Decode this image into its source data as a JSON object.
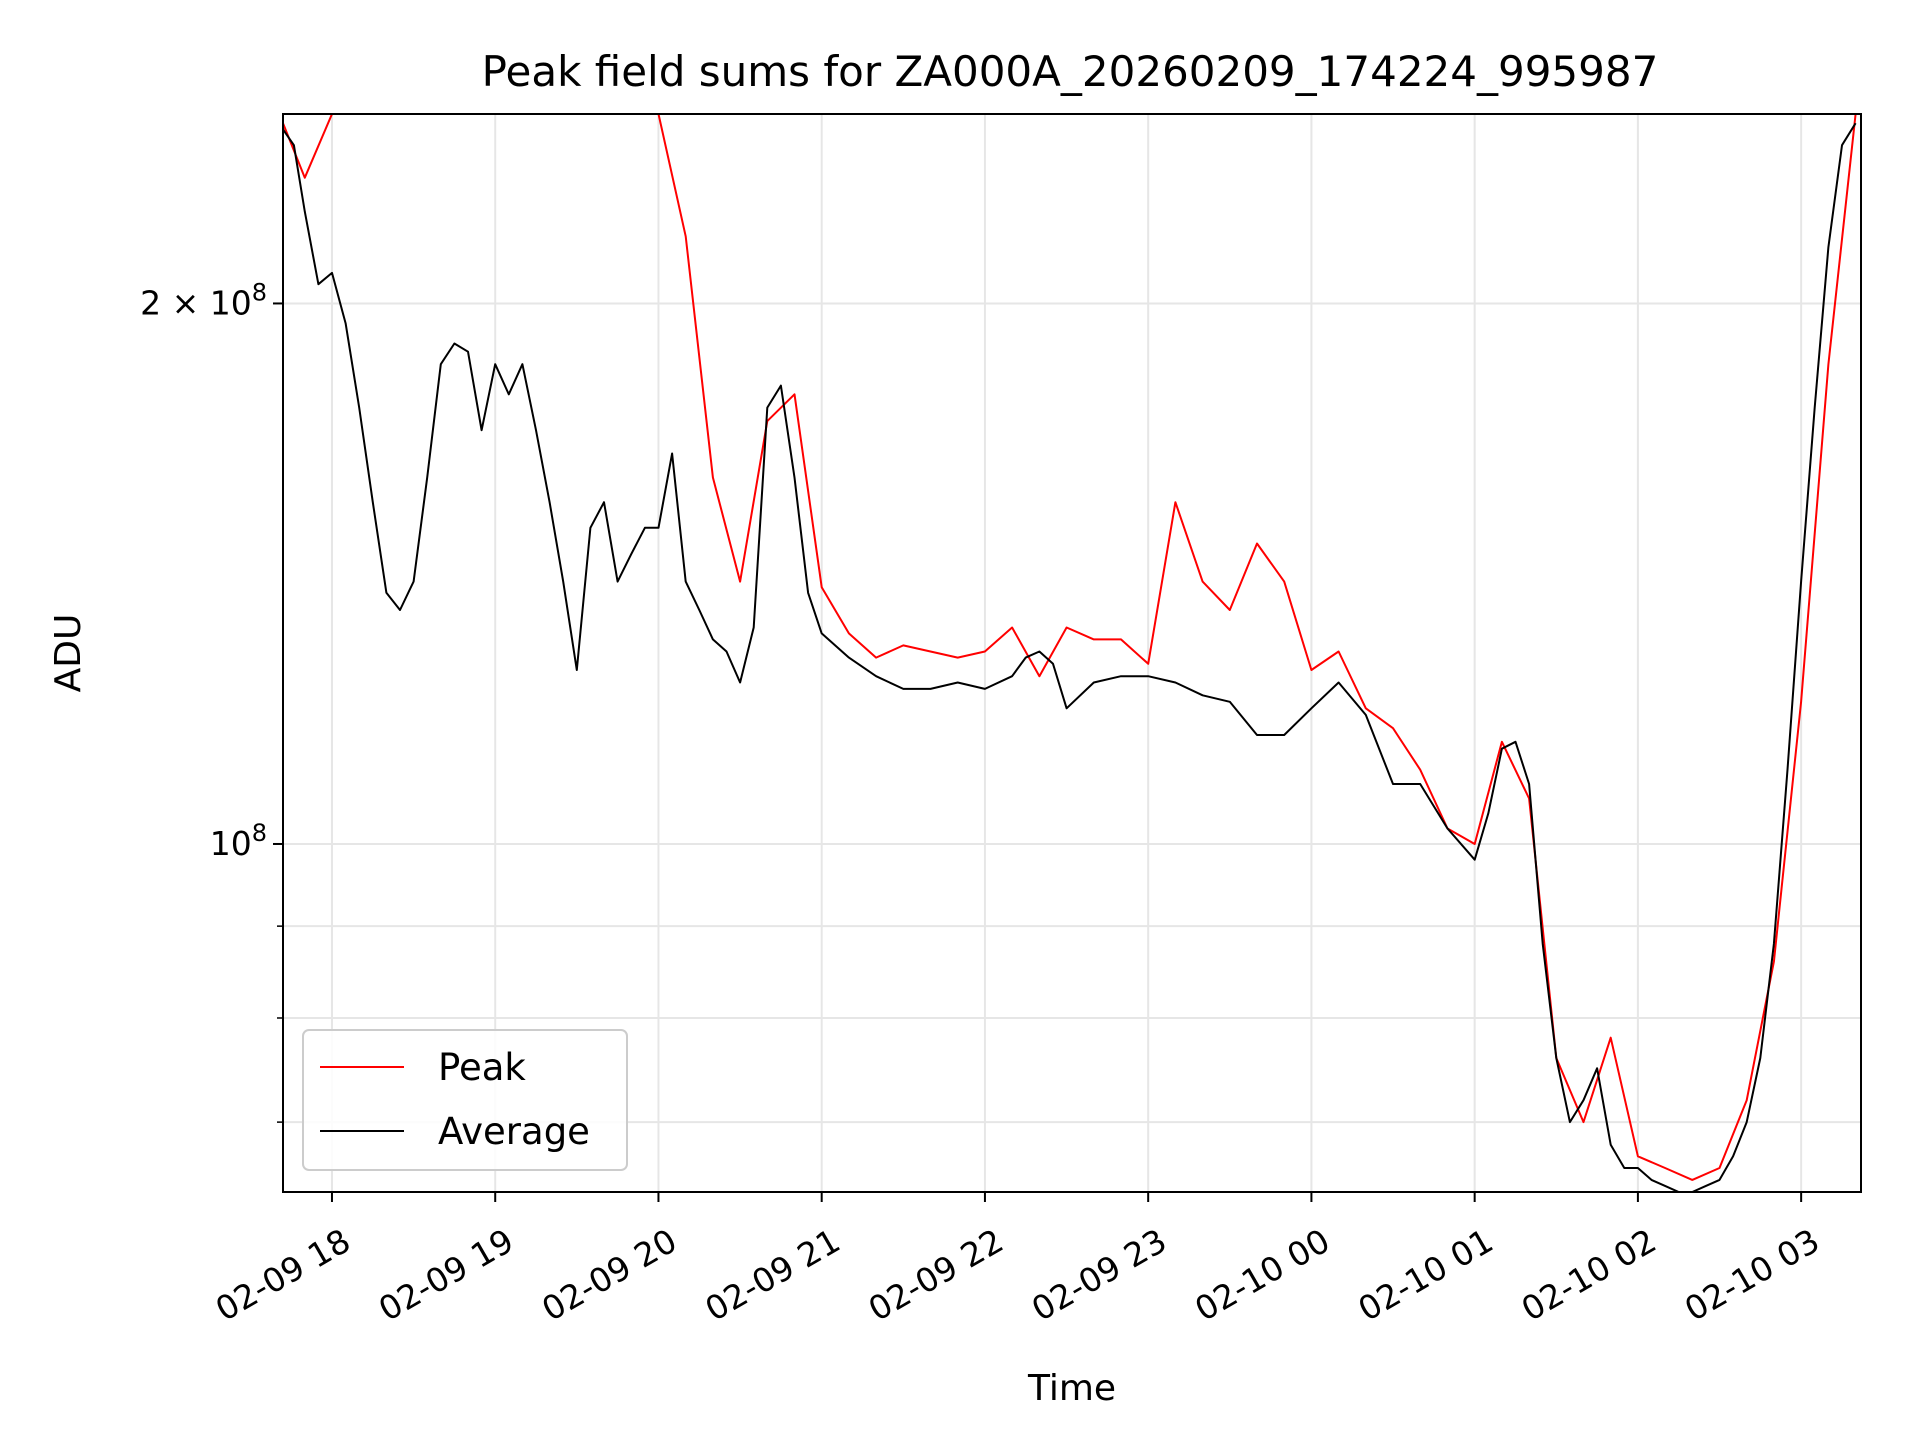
{
  "chart_data": {
    "type": "line",
    "title": "Peak field sums for ZA000A_20260209_174224_995987",
    "xlabel": "Time",
    "ylabel": "ADU",
    "y_scale": "log",
    "ylim": [
      64000000,
      255000000
    ],
    "xlim": [
      "2026-02-09 17:42",
      "2026-02-10 03:22"
    ],
    "x_ticks": [
      "02-09 18",
      "02-09 19",
      "02-09 20",
      "02-09 21",
      "02-09 22",
      "02-09 23",
      "02-10 00",
      "02-10 01",
      "02-10 02",
      "02-10 03"
    ],
    "y_ticks": [
      {
        "label": "2 × 10⁸",
        "base": "2 × 10",
        "exp": "8",
        "value": 200000000
      },
      {
        "label": "10⁸",
        "base": "10",
        "exp": "8",
        "value": 100000000
      }
    ],
    "grid": true,
    "legend_position": "lower-left",
    "series": [
      {
        "name": "Peak",
        "color": "#ff0000",
        "x": [
          "2026-02-09 17:42",
          "2026-02-09 17:50",
          "2026-02-09 18:00",
          "2026-02-09 18:10",
          "2026-02-09 18:20",
          "2026-02-09 18:30",
          "2026-02-09 18:40",
          "2026-02-09 18:50",
          "2026-02-09 19:00",
          "2026-02-09 19:10",
          "2026-02-09 19:20",
          "2026-02-09 19:30",
          "2026-02-09 19:40",
          "2026-02-09 19:50",
          "2026-02-09 20:00",
          "2026-02-09 20:10",
          "2026-02-09 20:20",
          "2026-02-09 20:30",
          "2026-02-09 20:40",
          "2026-02-09 20:50",
          "2026-02-09 21:00",
          "2026-02-09 21:10",
          "2026-02-09 21:20",
          "2026-02-09 21:30",
          "2026-02-09 21:40",
          "2026-02-09 21:50",
          "2026-02-09 22:00",
          "2026-02-09 22:10",
          "2026-02-09 22:20",
          "2026-02-09 22:30",
          "2026-02-09 22:40",
          "2026-02-09 22:50",
          "2026-02-09 23:00",
          "2026-02-09 23:10",
          "2026-02-09 23:20",
          "2026-02-09 23:30",
          "2026-02-09 23:40",
          "2026-02-09 23:50",
          "2026-02-10 00:00",
          "2026-02-10 00:10",
          "2026-02-10 00:20",
          "2026-02-10 00:30",
          "2026-02-10 00:40",
          "2026-02-10 00:50",
          "2026-02-10 01:00",
          "2026-02-10 01:10",
          "2026-02-10 01:20",
          "2026-02-10 01:30",
          "2026-02-10 01:40",
          "2026-02-10 01:50",
          "2026-02-10 02:00",
          "2026-02-10 02:10",
          "2026-02-10 02:20",
          "2026-02-10 02:30",
          "2026-02-10 02:40",
          "2026-02-10 02:50",
          "2026-02-10 03:00",
          "2026-02-10 03:10",
          "2026-02-10 03:20"
        ],
        "values": [
          252000000,
          235000000,
          255000000,
          255000000,
          255000000,
          255000000,
          255000000,
          255000000,
          255000000,
          255000000,
          255000000,
          255000000,
          255000000,
          255000000,
          255000000,
          218000000,
          160000000,
          140000000,
          172000000,
          178000000,
          139000000,
          131000000,
          127000000,
          129000000,
          128000000,
          127000000,
          128000000,
          132000000,
          124000000,
          132000000,
          130000000,
          130000000,
          126000000,
          155000000,
          140000000,
          135000000,
          147000000,
          140000000,
          125000000,
          128000000,
          119000000,
          116000000,
          110000000,
          102000000,
          100000000,
          114000000,
          106000000,
          76000000,
          70000000,
          78000000,
          67000000,
          66000000,
          65000000,
          66000000,
          72000000,
          86000000,
          120000000,
          185000000,
          255000000
        ]
      },
      {
        "name": "Average",
        "color": "#000000",
        "x": [
          "2026-02-09 17:42",
          "2026-02-09 17:46",
          "2026-02-09 17:50",
          "2026-02-09 17:55",
          "2026-02-09 18:00",
          "2026-02-09 18:05",
          "2026-02-09 18:10",
          "2026-02-09 18:15",
          "2026-02-09 18:20",
          "2026-02-09 18:25",
          "2026-02-09 18:30",
          "2026-02-09 18:35",
          "2026-02-09 18:40",
          "2026-02-09 18:45",
          "2026-02-09 18:50",
          "2026-02-09 18:55",
          "2026-02-09 19:00",
          "2026-02-09 19:05",
          "2026-02-09 19:10",
          "2026-02-09 19:15",
          "2026-02-09 19:20",
          "2026-02-09 19:25",
          "2026-02-09 19:30",
          "2026-02-09 19:35",
          "2026-02-09 19:40",
          "2026-02-09 19:45",
          "2026-02-09 19:50",
          "2026-02-09 19:55",
          "2026-02-09 20:00",
          "2026-02-09 20:05",
          "2026-02-09 20:10",
          "2026-02-09 20:15",
          "2026-02-09 20:20",
          "2026-02-09 20:25",
          "2026-02-09 20:30",
          "2026-02-09 20:35",
          "2026-02-09 20:40",
          "2026-02-09 20:45",
          "2026-02-09 20:50",
          "2026-02-09 20:55",
          "2026-02-09 21:00",
          "2026-02-09 21:10",
          "2026-02-09 21:20",
          "2026-02-09 21:30",
          "2026-02-09 21:40",
          "2026-02-09 21:50",
          "2026-02-09 22:00",
          "2026-02-09 22:10",
          "2026-02-09 22:15",
          "2026-02-09 22:20",
          "2026-02-09 22:25",
          "2026-02-09 22:30",
          "2026-02-09 22:40",
          "2026-02-09 22:50",
          "2026-02-09 23:00",
          "2026-02-09 23:10",
          "2026-02-09 23:20",
          "2026-02-09 23:30",
          "2026-02-09 23:40",
          "2026-02-09 23:50",
          "2026-02-10 00:00",
          "2026-02-10 00:10",
          "2026-02-10 00:20",
          "2026-02-10 00:30",
          "2026-02-10 00:40",
          "2026-02-10 00:50",
          "2026-02-10 01:00",
          "2026-02-10 01:05",
          "2026-02-10 01:10",
          "2026-02-10 01:15",
          "2026-02-10 01:20",
          "2026-02-10 01:25",
          "2026-02-10 01:30",
          "2026-02-10 01:35",
          "2026-02-10 01:40",
          "2026-02-10 01:45",
          "2026-02-10 01:50",
          "2026-02-10 01:55",
          "2026-02-10 02:00",
          "2026-02-10 02:05",
          "2026-02-10 02:10",
          "2026-02-10 02:15",
          "2026-02-10 02:20",
          "2026-02-10 02:25",
          "2026-02-10 02:30",
          "2026-02-10 02:35",
          "2026-02-10 02:40",
          "2026-02-10 02:45",
          "2026-02-10 02:50",
          "2026-02-10 02:55",
          "2026-02-10 03:00",
          "2026-02-10 03:05",
          "2026-02-10 03:10",
          "2026-02-10 03:15",
          "2026-02-10 03:20"
        ],
        "values": [
          250000000,
          245000000,
          225000000,
          205000000,
          208000000,
          195000000,
          175000000,
          155000000,
          138000000,
          135000000,
          140000000,
          160000000,
          185000000,
          190000000,
          188000000,
          170000000,
          185000000,
          178000000,
          185000000,
          170000000,
          155000000,
          140000000,
          125000000,
          150000000,
          155000000,
          140000000,
          145000000,
          150000000,
          150000000,
          165000000,
          140000000,
          135000000,
          130000000,
          128000000,
          123000000,
          132000000,
          175000000,
          180000000,
          160000000,
          138000000,
          131000000,
          127000000,
          124000000,
          122000000,
          122000000,
          123000000,
          122000000,
          124000000,
          127000000,
          128000000,
          126000000,
          119000000,
          123000000,
          124000000,
          124000000,
          123000000,
          121000000,
          120000000,
          115000000,
          115000000,
          119000000,
          123000000,
          118000000,
          108000000,
          108000000,
          102000000,
          98000000,
          104000000,
          113000000,
          114000000,
          108000000,
          88000000,
          76000000,
          70000000,
          72000000,
          75000000,
          68000000,
          66000000,
          66000000,
          65000000,
          64500000,
          64000000,
          64000000,
          64500000,
          65000000,
          67000000,
          70000000,
          76000000,
          88000000,
          110000000,
          140000000,
          175000000,
          215000000,
          245000000,
          252000000
        ]
      }
    ]
  }
}
